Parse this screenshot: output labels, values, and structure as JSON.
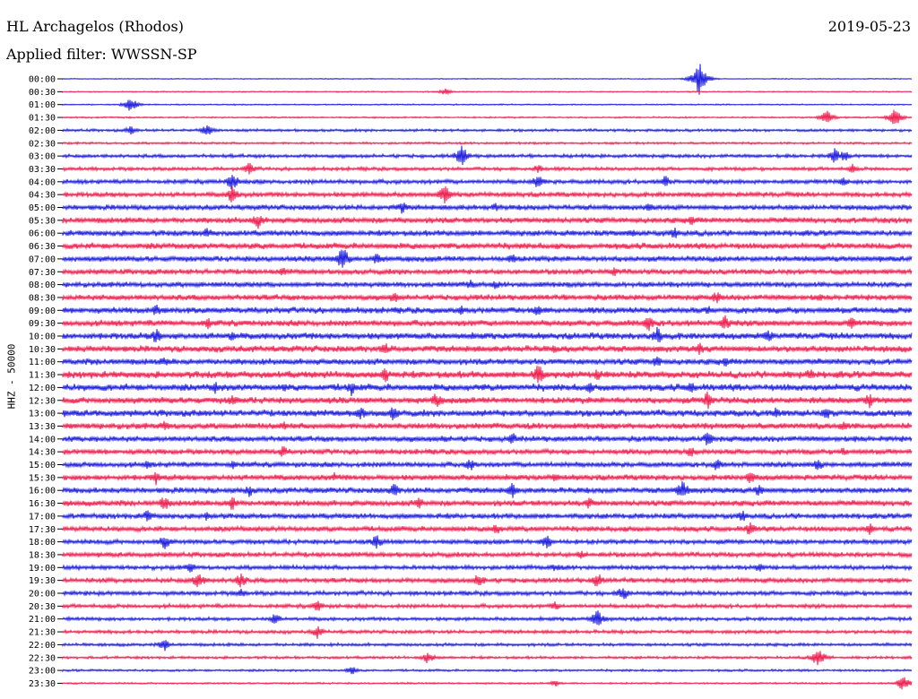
{
  "header": {
    "station": "HL Archagelos (Rhodos)",
    "date": "2019-05-23",
    "filter": "Applied filter: WWSSN-SP"
  },
  "chart_data": {
    "type": "line",
    "title": "HL Archagelos (Rhodos)",
    "ylabel": "HHZ - 50000",
    "xlabel": "",
    "colors": [
      "#1f1fdf",
      "#ee1f4f"
    ],
    "rows": [
      "00:00",
      "00:30",
      "01:00",
      "01:30",
      "02:00",
      "02:30",
      "03:00",
      "03:30",
      "04:00",
      "04:30",
      "05:00",
      "05:30",
      "06:00",
      "06:30",
      "07:00",
      "07:30",
      "08:00",
      "08:30",
      "09:00",
      "09:30",
      "10:00",
      "10:30",
      "11:00",
      "11:30",
      "12:00",
      "12:30",
      "13:00",
      "13:30",
      "14:00",
      "14:30",
      "15:00",
      "15:30",
      "16:00",
      "16:30",
      "17:00",
      "17:30",
      "18:00",
      "18:30",
      "19:00",
      "19:30",
      "20:00",
      "20:30",
      "21:00",
      "21:30",
      "22:00",
      "22:30",
      "23:00",
      "23:30"
    ],
    "noise_level": [
      0.4,
      0.5,
      0.6,
      0.7,
      1.2,
      1.0,
      1.6,
      1.6,
      2.0,
      2.2,
      2.4,
      2.6,
      2.6,
      2.8,
      2.6,
      2.4,
      2.4,
      2.6,
      2.8,
      2.8,
      3.0,
      3.0,
      2.8,
      3.2,
      3.2,
      3.0,
      3.0,
      2.8,
      2.6,
      2.4,
      2.4,
      2.6,
      2.6,
      2.6,
      2.4,
      2.4,
      2.2,
      2.2,
      2.0,
      2.2,
      2.0,
      1.8,
      1.6,
      1.6,
      1.4,
      1.2,
      1.0,
      0.8
    ],
    "events": [
      [
        0,
        0.75,
        22
      ],
      [
        1,
        0.45,
        4
      ],
      [
        3,
        0.9,
        10
      ],
      [
        3,
        0.98,
        12
      ],
      [
        2,
        0.08,
        10
      ],
      [
        4,
        0.17,
        8
      ],
      [
        4,
        0.08,
        6
      ],
      [
        6,
        0.47,
        14
      ],
      [
        6,
        0.91,
        10
      ],
      [
        6,
        0.92,
        8
      ],
      [
        7,
        0.22,
        8
      ],
      [
        7,
        0.56,
        6
      ],
      [
        7,
        0.93,
        6
      ],
      [
        8,
        0.2,
        12
      ],
      [
        8,
        0.56,
        10
      ],
      [
        8,
        0.71,
        8
      ],
      [
        8,
        0.92,
        6
      ],
      [
        9,
        0.2,
        12
      ],
      [
        9,
        0.45,
        12
      ],
      [
        10,
        0.4,
        8
      ],
      [
        10,
        0.51,
        6
      ],
      [
        10,
        0.69,
        6
      ],
      [
        11,
        0.23,
        10
      ],
      [
        11,
        0.74,
        8
      ],
      [
        12,
        0.17,
        8
      ],
      [
        12,
        0.67,
        6
      ],
      [
        12,
        0.72,
        8
      ],
      [
        14,
        0.33,
        16
      ],
      [
        14,
        0.37,
        8
      ],
      [
        14,
        0.53,
        8
      ],
      [
        15,
        0.26,
        6
      ],
      [
        15,
        0.65,
        6
      ],
      [
        16,
        0.48,
        6
      ],
      [
        16,
        0.51,
        6
      ],
      [
        17,
        0.39,
        8
      ],
      [
        17,
        0.77,
        8
      ],
      [
        17,
        0.89,
        6
      ],
      [
        18,
        0.11,
        8
      ],
      [
        18,
        0.47,
        6
      ],
      [
        18,
        0.56,
        8
      ],
      [
        18,
        0.76,
        6
      ],
      [
        19,
        0.17,
        8
      ],
      [
        19,
        0.69,
        10
      ],
      [
        19,
        0.78,
        10
      ],
      [
        19,
        0.93,
        8
      ],
      [
        20,
        0.11,
        10
      ],
      [
        20,
        0.2,
        8
      ],
      [
        20,
        0.7,
        12
      ],
      [
        20,
        0.83,
        10
      ],
      [
        21,
        0.38,
        8
      ],
      [
        21,
        0.58,
        6
      ],
      [
        21,
        0.75,
        8
      ],
      [
        22,
        0.12,
        6
      ],
      [
        22,
        0.7,
        8
      ],
      [
        22,
        0.78,
        8
      ],
      [
        23,
        0.38,
        10
      ],
      [
        23,
        0.56,
        14
      ],
      [
        23,
        0.63,
        8
      ],
      [
        23,
        0.88,
        8
      ],
      [
        24,
        0.18,
        8
      ],
      [
        24,
        0.26,
        6
      ],
      [
        24,
        0.34,
        10
      ],
      [
        24,
        0.62,
        8
      ],
      [
        24,
        0.74,
        8
      ],
      [
        25,
        0.2,
        8
      ],
      [
        25,
        0.44,
        10
      ],
      [
        25,
        0.76,
        12
      ],
      [
        25,
        0.95,
        10
      ],
      [
        26,
        0.35,
        10
      ],
      [
        26,
        0.39,
        10
      ],
      [
        26,
        0.84,
        8
      ],
      [
        26,
        0.9,
        8
      ],
      [
        27,
        0.12,
        8
      ],
      [
        27,
        0.26,
        6
      ],
      [
        27,
        0.92,
        8
      ],
      [
        28,
        0.45,
        6
      ],
      [
        28,
        0.53,
        8
      ],
      [
        28,
        0.76,
        10
      ],
      [
        29,
        0.26,
        8
      ],
      [
        29,
        0.74,
        8
      ],
      [
        29,
        0.92,
        6
      ],
      [
        30,
        0.1,
        6
      ],
      [
        30,
        0.2,
        6
      ],
      [
        30,
        0.48,
        8
      ],
      [
        30,
        0.77,
        8
      ],
      [
        30,
        0.89,
        8
      ],
      [
        31,
        0.11,
        10
      ],
      [
        31,
        0.32,
        6
      ],
      [
        31,
        0.58,
        6
      ],
      [
        31,
        0.81,
        8
      ],
      [
        32,
        0.22,
        8
      ],
      [
        32,
        0.39,
        10
      ],
      [
        32,
        0.53,
        10
      ],
      [
        32,
        0.73,
        14
      ],
      [
        32,
        0.82,
        8
      ],
      [
        33,
        0.12,
        10
      ],
      [
        33,
        0.2,
        10
      ],
      [
        33,
        0.42,
        8
      ],
      [
        33,
        0.62,
        8
      ],
      [
        34,
        0.1,
        8
      ],
      [
        34,
        0.17,
        6
      ],
      [
        34,
        0.8,
        8
      ],
      [
        35,
        0.51,
        8
      ],
      [
        35,
        0.81,
        10
      ],
      [
        35,
        0.95,
        8
      ],
      [
        36,
        0.12,
        10
      ],
      [
        36,
        0.37,
        10
      ],
      [
        36,
        0.57,
        10
      ],
      [
        37,
        0.61,
        6
      ],
      [
        38,
        0.15,
        8
      ],
      [
        38,
        0.58,
        6
      ],
      [
        38,
        0.82,
        6
      ],
      [
        39,
        0.16,
        12
      ],
      [
        39,
        0.21,
        10
      ],
      [
        39,
        0.49,
        10
      ],
      [
        39,
        0.63,
        10
      ],
      [
        40,
        0.21,
        6
      ],
      [
        40,
        0.66,
        10
      ],
      [
        41,
        0.3,
        8
      ],
      [
        41,
        0.58,
        6
      ],
      [
        42,
        0.25,
        8
      ],
      [
        42,
        0.63,
        12
      ],
      [
        43,
        0.3,
        8
      ],
      [
        44,
        0.12,
        8
      ],
      [
        45,
        0.43,
        8
      ],
      [
        45,
        0.89,
        14
      ],
      [
        46,
        0.34,
        6
      ],
      [
        47,
        0.58,
        4
      ],
      [
        47,
        0.99,
        10
      ]
    ]
  }
}
